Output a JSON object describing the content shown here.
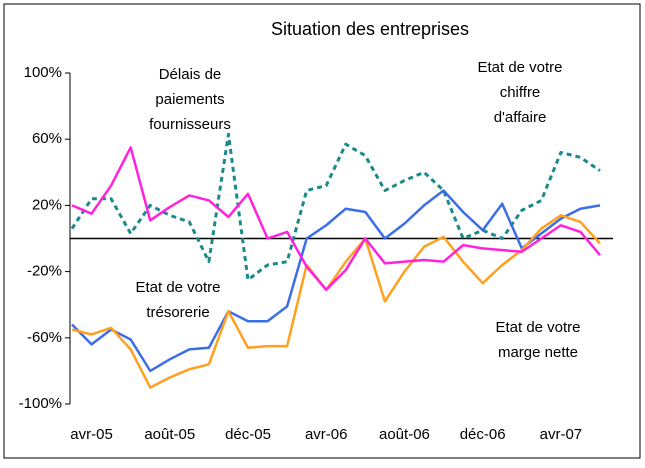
{
  "chart_data": {
    "type": "line",
    "title": "Situation des entreprises",
    "categories": [
      null,
      "avr-05",
      null,
      null,
      null,
      "août-05",
      null,
      null,
      null,
      "déc-05",
      null,
      null,
      null,
      "avr-06",
      null,
      null,
      null,
      "août-06",
      null,
      null,
      null,
      "déc-06",
      null,
      null,
      null,
      "avr-07",
      null,
      null
    ],
    "ylim": [
      -100,
      100
    ],
    "yticks": [
      {
        "value": -100,
        "label": "-100%"
      },
      {
        "value": -60,
        "label": "-60%"
      },
      {
        "value": -20,
        "label": "-20%"
      },
      {
        "value": 20,
        "label": "20%"
      },
      {
        "value": 60,
        "label": "60%"
      },
      {
        "value": 100,
        "label": "100%"
      }
    ],
    "grid": false,
    "series": [
      {
        "color": "#1a8a8a",
        "dashed": true,
        "values": [
          6,
          24,
          24,
          3,
          20,
          14,
          10,
          -14,
          63,
          -25,
          -16,
          -14,
          29,
          32,
          57,
          50,
          29,
          35,
          40,
          29,
          0,
          5,
          0,
          17,
          23,
          52,
          49,
          41
        ]
      },
      {
        "color": "#3b6ee8",
        "values": [
          -52,
          -64,
          -55,
          -61,
          -80,
          -73,
          -67,
          -66,
          -44,
          -50,
          -50,
          -41,
          0,
          8,
          18,
          16,
          0,
          9,
          20,
          29,
          16,
          5,
          21,
          -6,
          3,
          12,
          18,
          20
        ]
      },
      {
        "color": "#ffa020",
        "values": [
          -55,
          -58,
          -54,
          -67,
          -90,
          -84,
          -79,
          -76,
          -44,
          -66,
          -65,
          -65,
          -16,
          -31,
          -14,
          0,
          -38,
          -20,
          -5,
          1,
          -14,
          -27,
          -16,
          -7,
          6,
          14,
          10,
          -3
        ]
      },
      {
        "color": "#ff22dd",
        "values": [
          20,
          15,
          32,
          55,
          11,
          19,
          26,
          23,
          13,
          27,
          0,
          4,
          -17,
          -31,
          -19,
          0,
          -15,
          -14,
          -13,
          -14,
          -4,
          -6,
          -7,
          -8,
          0,
          8,
          4,
          -10
        ]
      }
    ],
    "annotations": [
      {
        "lines": [
          "Délais de",
          "paiements",
          "fournisseurs"
        ]
      },
      {
        "lines": [
          "Etat de votre",
          "chiffre",
          "d'affaire"
        ]
      },
      {
        "lines": [
          "Etat de votre",
          "trésorerie"
        ]
      },
      {
        "lines": [
          "Etat de votre",
          "marge nette"
        ]
      }
    ]
  }
}
